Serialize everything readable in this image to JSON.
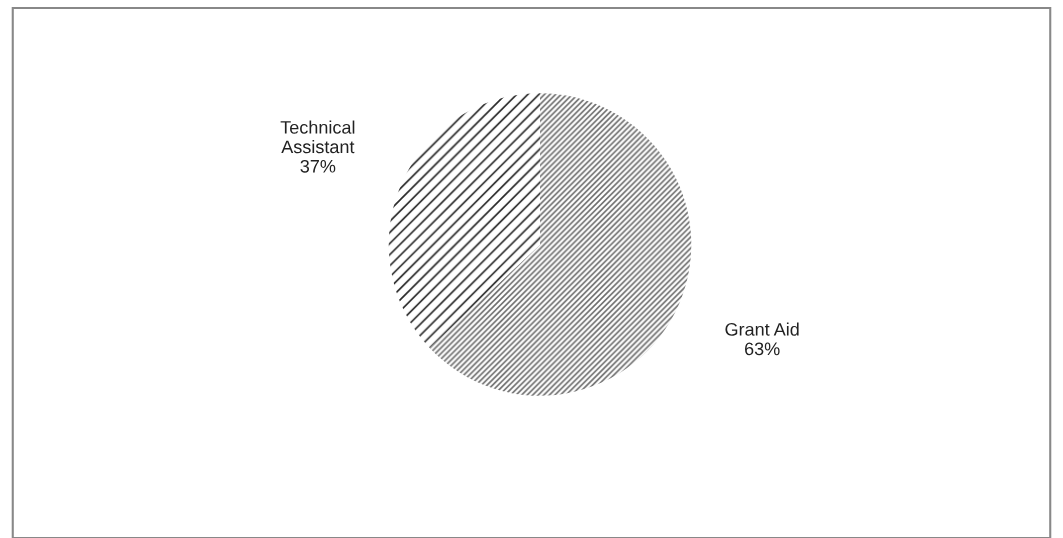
{
  "chart_data": {
    "type": "pie",
    "categories": [
      "Grant Aid",
      "Technical Assistant"
    ],
    "values": [
      63,
      37
    ],
    "colors": [
      "#6e6e6e",
      "#2a2a2a"
    ],
    "value_labels": [
      "63%",
      "37%"
    ]
  }
}
